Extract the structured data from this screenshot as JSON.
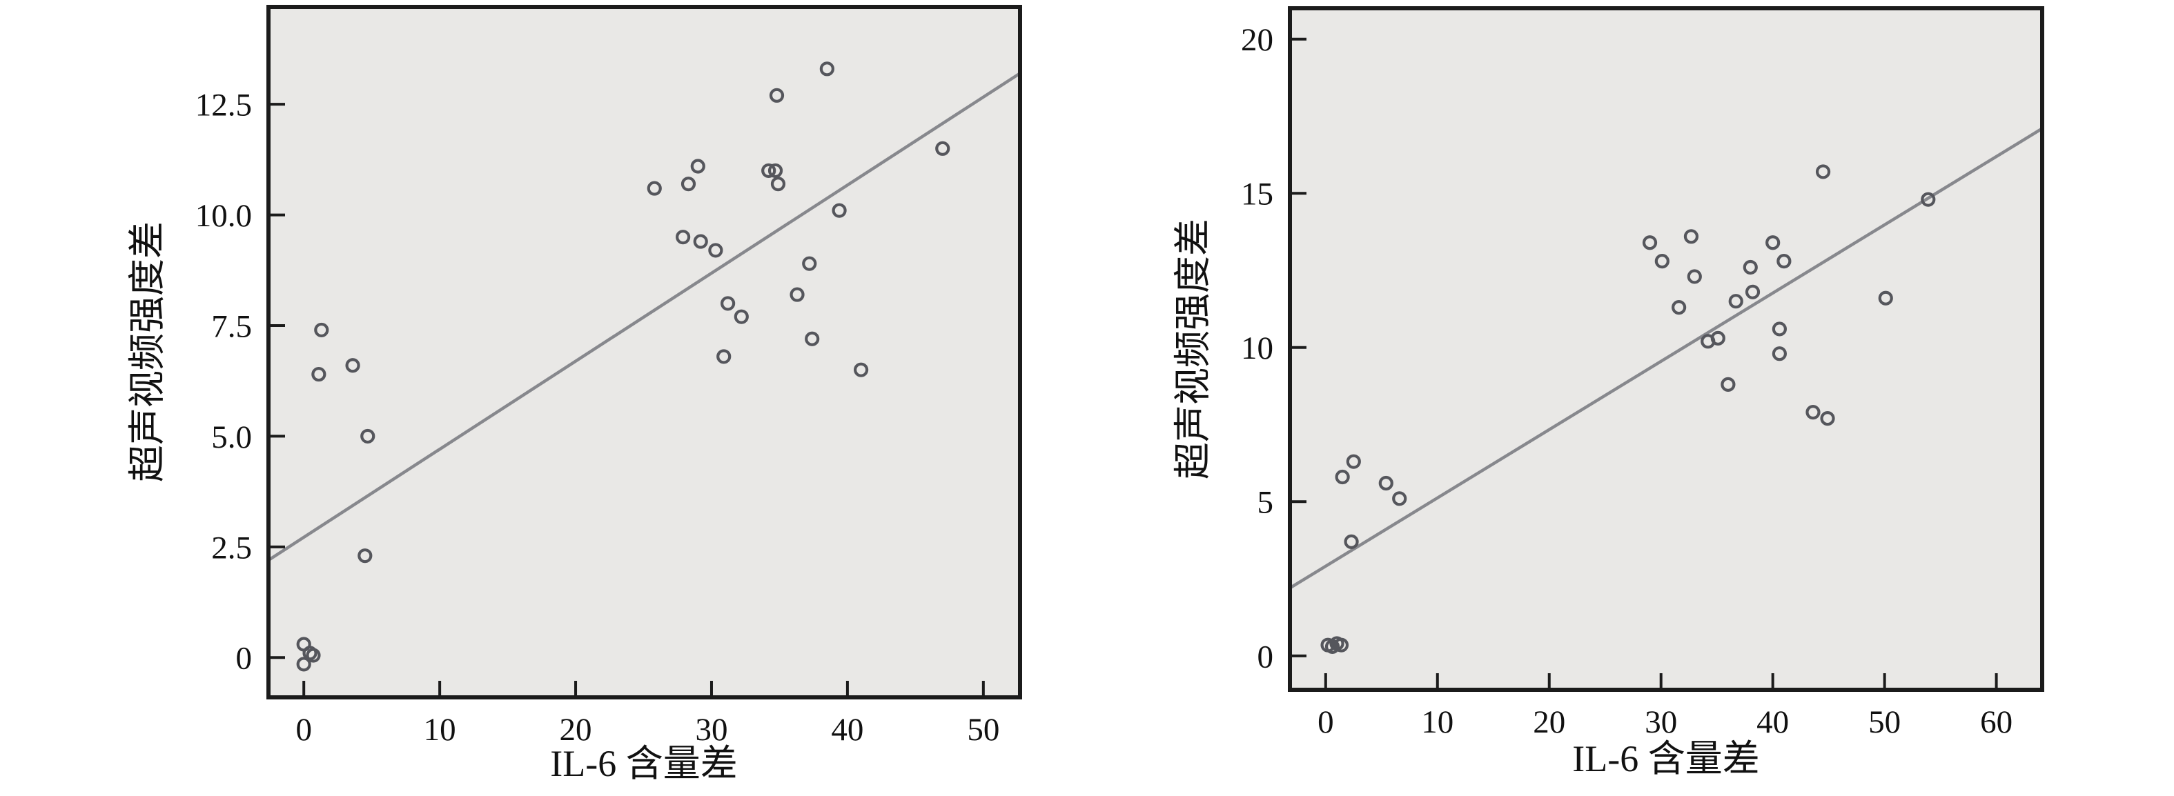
{
  "figure": {
    "background": "#ffffff",
    "plot_background": "#e9e8e6",
    "spine_color": "#1b1b1b",
    "marker_color": "#55565c",
    "trendline_color": "#87888d",
    "tick_color": "#1b1b1b",
    "text_color": "#111111"
  },
  "chart_data": [
    {
      "type": "scatter",
      "title": "",
      "xlabel": "IL-6 含量差",
      "ylabel": "超声视频强度差",
      "xlim": [
        -2.6,
        52.7
      ],
      "ylim": [
        -0.9,
        14.7
      ],
      "grid": false,
      "legend": null,
      "xticks": [
        0,
        10,
        20,
        30,
        40,
        50
      ],
      "xtick_labels": [
        "0",
        "10",
        "20",
        "30",
        "40",
        "50"
      ],
      "yticks": [
        0,
        2.5,
        5.0,
        7.5,
        10.0,
        12.5
      ],
      "ytick_labels": [
        "0",
        "2.5",
        "5.0",
        "7.5",
        "10.0",
        "12.5"
      ],
      "points": [
        [
          38.5,
          13.3
        ],
        [
          34.8,
          12.7
        ],
        [
          47.0,
          11.5
        ],
        [
          29.0,
          11.1
        ],
        [
          34.2,
          11.0
        ],
        [
          34.7,
          11.0
        ],
        [
          34.9,
          10.7
        ],
        [
          28.3,
          10.7
        ],
        [
          25.8,
          10.6
        ],
        [
          39.4,
          10.1
        ],
        [
          27.9,
          9.5
        ],
        [
          29.2,
          9.4
        ],
        [
          30.3,
          9.2
        ],
        [
          37.2,
          8.9
        ],
        [
          36.3,
          8.2
        ],
        [
          31.2,
          8.0
        ],
        [
          32.2,
          7.7
        ],
        [
          37.4,
          7.2
        ],
        [
          30.9,
          6.8
        ],
        [
          41.0,
          6.5
        ],
        [
          1.3,
          7.4
        ],
        [
          1.1,
          6.4
        ],
        [
          3.6,
          6.6
        ],
        [
          4.7,
          5.0
        ],
        [
          4.5,
          2.3
        ],
        [
          0.0,
          0.3
        ],
        [
          0.45,
          0.1
        ],
        [
          0.0,
          -0.15
        ],
        [
          0.7,
          0.05
        ]
      ],
      "trendline": {
        "x1": -2.6,
        "y1": 2.2,
        "x2": 52.7,
        "y2": 13.2
      }
    },
    {
      "type": "scatter",
      "title": "",
      "xlabel": "IL-6 含量差",
      "ylabel": "超声视频强度差",
      "xlim": [
        -3.2,
        64.1
      ],
      "ylim": [
        -1.1,
        21.0
      ],
      "grid": false,
      "legend": null,
      "xticks": [
        0,
        10,
        20,
        30,
        40,
        50,
        60
      ],
      "xtick_labels": [
        "0",
        "10",
        "20",
        "30",
        "40",
        "50",
        "60"
      ],
      "yticks": [
        0,
        5,
        10,
        15,
        20
      ],
      "ytick_labels": [
        "0",
        "5",
        "10",
        "15",
        "20"
      ],
      "points": [
        [
          44.5,
          15.7
        ],
        [
          53.9,
          14.8
        ],
        [
          29.0,
          13.4
        ],
        [
          32.7,
          13.6
        ],
        [
          40.0,
          13.4
        ],
        [
          30.1,
          12.8
        ],
        [
          41.0,
          12.8
        ],
        [
          38.0,
          12.6
        ],
        [
          33.0,
          12.3
        ],
        [
          38.2,
          11.8
        ],
        [
          36.7,
          11.5
        ],
        [
          31.6,
          11.3
        ],
        [
          50.1,
          11.6
        ],
        [
          34.2,
          10.2
        ],
        [
          35.1,
          10.3
        ],
        [
          40.6,
          10.6
        ],
        [
          40.6,
          9.8
        ],
        [
          36.0,
          8.8
        ],
        [
          43.6,
          7.9
        ],
        [
          44.9,
          7.7
        ],
        [
          2.5,
          6.3
        ],
        [
          1.5,
          5.8
        ],
        [
          5.4,
          5.6
        ],
        [
          6.6,
          5.1
        ],
        [
          2.3,
          3.7
        ],
        [
          0.2,
          0.35
        ],
        [
          0.6,
          0.3
        ],
        [
          1.0,
          0.4
        ],
        [
          1.4,
          0.35
        ]
      ],
      "trendline": {
        "x1": -3.2,
        "y1": 2.2,
        "x2": 64.1,
        "y2": 17.1
      }
    }
  ]
}
